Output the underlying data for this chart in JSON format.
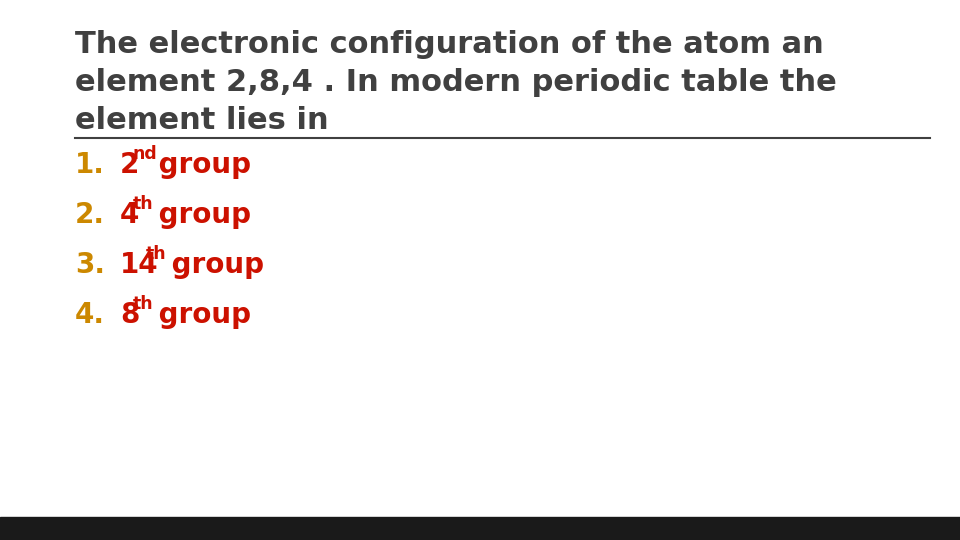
{
  "title_line1": "The electronic configuration of the atom an",
  "title_line2": "element 2,8,4 . In modern periodic table the",
  "title_line3": "element lies in",
  "title_color": "#404040",
  "title_fontsize": 22,
  "separator_color": "#404040",
  "options": [
    {
      "number": "1.",
      "main": "2",
      "super": "nd",
      "rest": " group"
    },
    {
      "number": "2.",
      "main": "4",
      "super": "th",
      "rest": " group"
    },
    {
      "number": "3.",
      "main": "14",
      "super": "th",
      "rest": " group"
    },
    {
      "number": "4.",
      "main": "8",
      "super": "th",
      "rest": " group"
    }
  ],
  "number_color": "#CC8800",
  "option_color": "#CC1100",
  "option_fontsize": 20,
  "background_color": "#FFFFFF",
  "bottom_bar_color": "#1a1a1a",
  "bottom_bar_height": 0.042
}
